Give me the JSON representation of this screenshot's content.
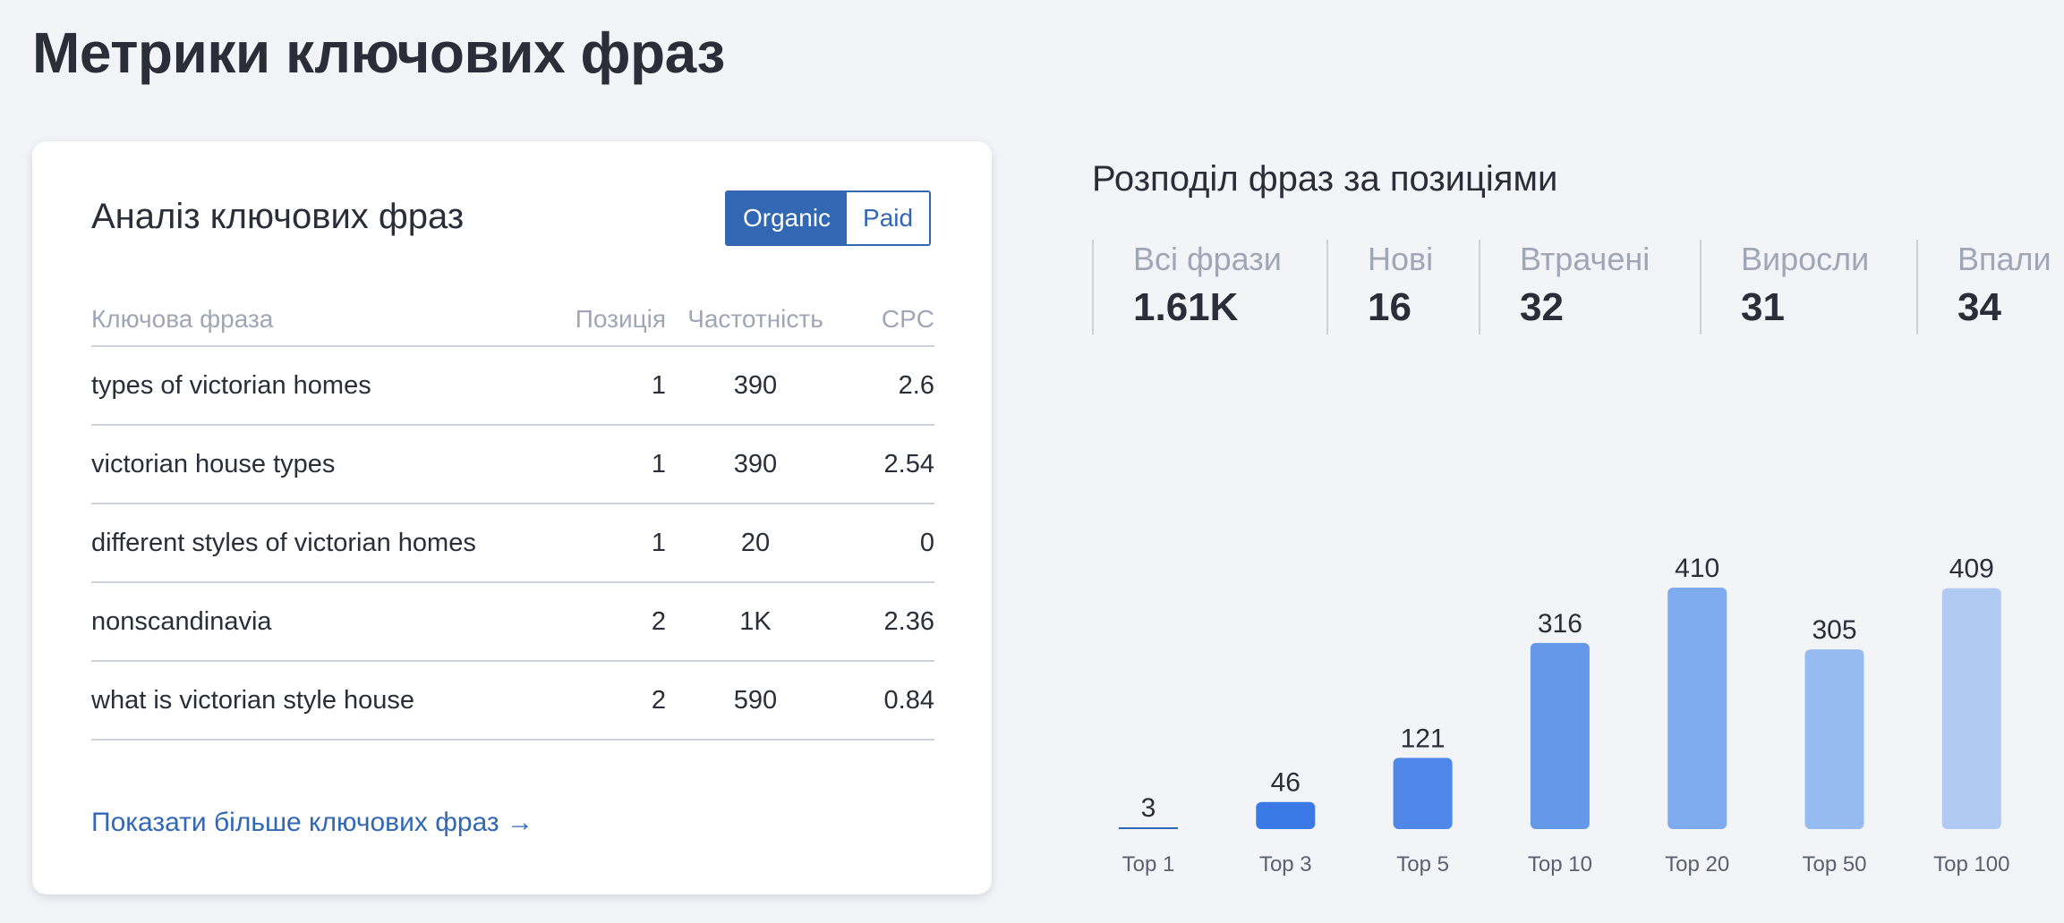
{
  "page": {
    "title": "Метрики ключових фраз"
  },
  "keywords_card": {
    "title": "Аналіз ключових фраз",
    "toggle": {
      "organic": "Organic",
      "paid": "Paid",
      "active": "Organic"
    },
    "columns": {
      "phrase": "Ключова фраза",
      "position": "Позиція",
      "frequency": "Частотність",
      "cpc": "CPC"
    },
    "rows": [
      {
        "phrase": "types of victorian homes",
        "position": "1",
        "frequency": "390",
        "cpc": "2.6"
      },
      {
        "phrase": "victorian house types",
        "position": "1",
        "frequency": "390",
        "cpc": "2.54"
      },
      {
        "phrase": "different styles of victorian homes",
        "position": "1",
        "frequency": "20",
        "cpc": "0"
      },
      {
        "phrase": "nonscandinavia",
        "position": "2",
        "frequency": "1K",
        "cpc": "2.36"
      },
      {
        "phrase": "what is victorian style house",
        "position": "2",
        "frequency": "590",
        "cpc": "0.84"
      }
    ],
    "show_more": "Показати більше ключових фраз →"
  },
  "distribution": {
    "title": "Розподіл фраз за позиціями",
    "stats": [
      {
        "label": "Всі фрази",
        "value": "1.61K"
      },
      {
        "label": "Нові",
        "value": "16"
      },
      {
        "label": "Втрачені",
        "value": "32"
      },
      {
        "label": "Виросли",
        "value": "31"
      },
      {
        "label": "Впали",
        "value": "34"
      }
    ]
  },
  "chart_data": {
    "type": "bar",
    "categories": [
      "Top 1",
      "Top 3",
      "Top 5",
      "Top 10",
      "Top 20",
      "Top 50",
      "Top 100"
    ],
    "values": [
      3,
      46,
      121,
      316,
      410,
      305,
      409
    ],
    "colors": [
      "#2f68b8",
      "#3b79e6",
      "#4e87e8",
      "#6698ea",
      "#7faaee",
      "#96bbf0",
      "#b0caf3"
    ],
    "ylim": [
      0,
      410
    ],
    "title": "",
    "xlabel": "",
    "ylabel": ""
  }
}
